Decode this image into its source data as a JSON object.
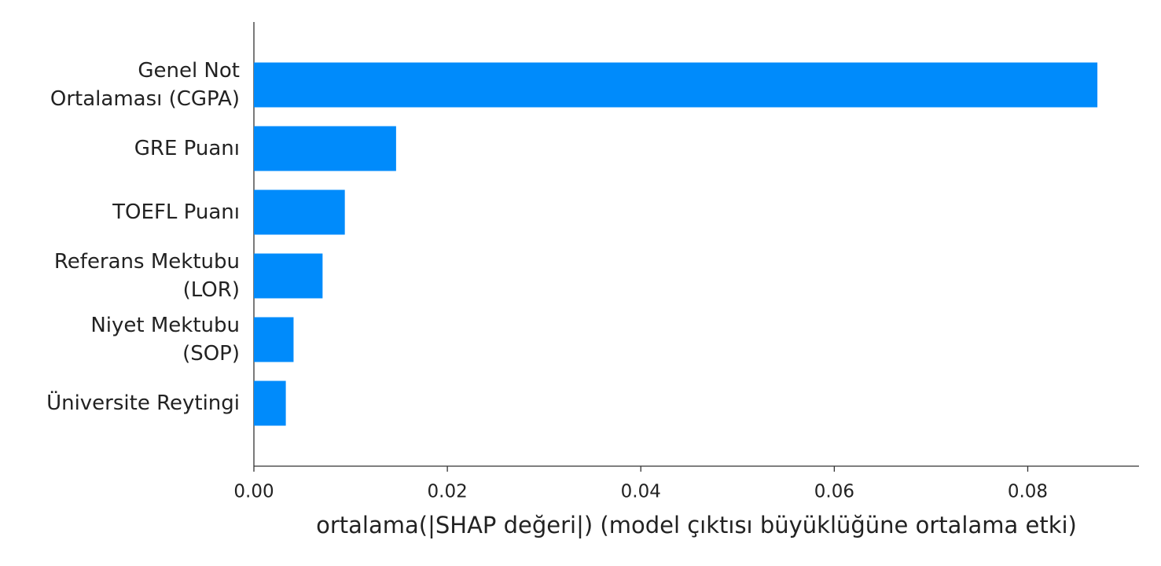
{
  "chart_data": {
    "type": "bar",
    "orientation": "horizontal",
    "categories": [
      "Genel Not\nOrtalaması (CGPA)",
      "GRE Puanı",
      "TOEFL Puanı",
      "Referans Mektubu\n(LOR)",
      "Niyet Mektubu\n(SOP)",
      "Üniversite Reytingi"
    ],
    "values": [
      0.0872,
      0.0147,
      0.0094,
      0.0071,
      0.0041,
      0.0033
    ],
    "color": "#008bfb",
    "xlabel": "ortalama(|SHAP değeri|) (model çıktısı büyüklüğüne ortalama etki)",
    "xlim": [
      0,
      0.0915
    ],
    "xticks": [
      {
        "value": 0,
        "label": "0.00"
      },
      0.02,
      0.04,
      0.06,
      0.08
    ],
    "grid": false
  }
}
